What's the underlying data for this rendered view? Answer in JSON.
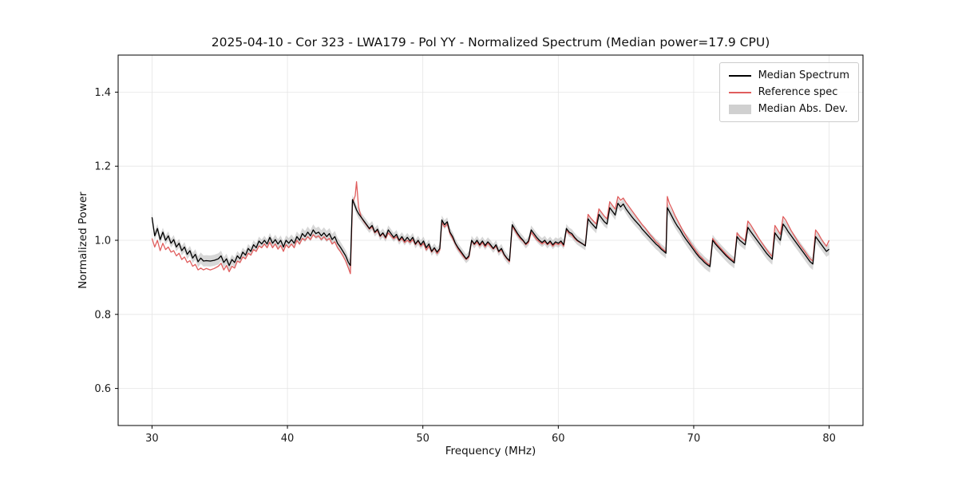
{
  "chart_data": {
    "type": "line",
    "title": "2025-04-10 - Cor 323 - LWA179 - Pol YY - Normalized Spectrum (Median power=17.9 CPU)",
    "xlabel": "Frequency (MHz)",
    "ylabel": "Normalized Power",
    "xlim": [
      27.5,
      82.5
    ],
    "ylim": [
      0.5,
      1.5
    ],
    "xticks": [
      30,
      40,
      50,
      60,
      70,
      80
    ],
    "yticks": [
      0.6,
      0.8,
      1.0,
      1.2,
      1.4
    ],
    "grid": true,
    "colors": {
      "median": "#000000",
      "reference": "#e05d5d",
      "band": "#b0b0b0",
      "grid": "#e5e5e5",
      "spine": "#000000",
      "tick_label": "#1a1a1a"
    },
    "legend": {
      "position": "upper right",
      "entries": [
        {
          "label": "Median Spectrum",
          "swatch": "line-black"
        },
        {
          "label": "Reference spec",
          "swatch": "line-red"
        },
        {
          "label": "Median Abs. Dev.",
          "swatch": "patch-gray"
        }
      ]
    },
    "points_format": [
      "frequency_mhz",
      "median_spectrum",
      "reference_spec",
      "median_abs_dev_halfwidth"
    ],
    "points": [
      [
        30.0,
        1.062,
        1.005,
        0.012
      ],
      [
        30.2,
        1.012,
        0.982,
        0.012
      ],
      [
        30.4,
        1.032,
        1.0,
        0.012
      ],
      [
        30.6,
        1.002,
        0.972,
        0.012
      ],
      [
        30.8,
        1.022,
        0.992,
        0.012
      ],
      [
        31.0,
        1.0,
        0.975,
        0.012
      ],
      [
        31.2,
        1.012,
        0.982,
        0.012
      ],
      [
        31.4,
        0.992,
        0.968,
        0.012
      ],
      [
        31.6,
        1.002,
        0.972,
        0.012
      ],
      [
        31.8,
        0.982,
        0.958,
        0.012
      ],
      [
        32.0,
        0.992,
        0.965,
        0.012
      ],
      [
        32.2,
        0.972,
        0.948,
        0.013
      ],
      [
        32.4,
        0.982,
        0.955,
        0.013
      ],
      [
        32.6,
        0.962,
        0.94,
        0.013
      ],
      [
        32.8,
        0.972,
        0.945,
        0.013
      ],
      [
        33.0,
        0.952,
        0.93,
        0.014
      ],
      [
        33.2,
        0.962,
        0.935,
        0.014
      ],
      [
        33.4,
        0.942,
        0.92,
        0.015
      ],
      [
        33.6,
        0.952,
        0.925,
        0.015
      ],
      [
        33.8,
        0.944,
        0.92,
        0.015
      ],
      [
        34.0,
        0.945,
        0.924,
        0.015
      ],
      [
        34.3,
        0.944,
        0.92,
        0.015
      ],
      [
        34.6,
        0.946,
        0.924,
        0.015
      ],
      [
        34.9,
        0.95,
        0.93,
        0.015
      ],
      [
        35.1,
        0.958,
        0.938,
        0.014
      ],
      [
        35.3,
        0.94,
        0.92,
        0.014
      ],
      [
        35.5,
        0.95,
        0.932,
        0.014
      ],
      [
        35.7,
        0.932,
        0.915,
        0.014
      ],
      [
        35.9,
        0.948,
        0.93,
        0.013
      ],
      [
        36.1,
        0.94,
        0.925,
        0.013
      ],
      [
        36.3,
        0.958,
        0.944,
        0.013
      ],
      [
        36.5,
        0.95,
        0.94,
        0.013
      ],
      [
        36.7,
        0.968,
        0.955,
        0.012
      ],
      [
        36.9,
        0.96,
        0.95,
        0.012
      ],
      [
        37.1,
        0.978,
        0.965,
        0.012
      ],
      [
        37.3,
        0.97,
        0.96,
        0.012
      ],
      [
        37.5,
        0.988,
        0.975,
        0.012
      ],
      [
        37.7,
        0.98,
        0.97,
        0.012
      ],
      [
        37.9,
        0.998,
        0.985,
        0.012
      ],
      [
        38.1,
        0.99,
        0.98,
        0.012
      ],
      [
        38.3,
        1.0,
        0.99,
        0.012
      ],
      [
        38.5,
        0.99,
        0.98,
        0.012
      ],
      [
        38.7,
        1.008,
        0.995,
        0.012
      ],
      [
        38.9,
        0.992,
        0.98,
        0.012
      ],
      [
        39.1,
        1.002,
        0.99,
        0.013
      ],
      [
        39.3,
        0.99,
        0.976,
        0.013
      ],
      [
        39.5,
        1.0,
        0.986,
        0.013
      ],
      [
        39.7,
        0.982,
        0.97,
        0.013
      ],
      [
        39.9,
        1.0,
        0.988,
        0.013
      ],
      [
        40.1,
        0.992,
        0.98,
        0.014
      ],
      [
        40.3,
        1.002,
        0.99,
        0.014
      ],
      [
        40.5,
        0.992,
        0.98,
        0.014
      ],
      [
        40.7,
        1.01,
        1.0,
        0.014
      ],
      [
        40.9,
        1.0,
        0.99,
        0.014
      ],
      [
        41.1,
        1.018,
        1.005,
        0.015
      ],
      [
        41.3,
        1.01,
        1.0,
        0.015
      ],
      [
        41.5,
        1.022,
        1.01,
        0.015
      ],
      [
        41.7,
        1.012,
        1.002,
        0.015
      ],
      [
        41.9,
        1.028,
        1.015,
        0.015
      ],
      [
        42.1,
        1.018,
        1.008,
        0.015
      ],
      [
        42.3,
        1.022,
        1.012,
        0.015
      ],
      [
        42.5,
        1.012,
        1.002,
        0.015
      ],
      [
        42.7,
        1.02,
        1.01,
        0.015
      ],
      [
        42.9,
        1.01,
        1.0,
        0.015
      ],
      [
        43.1,
        1.018,
        1.005,
        0.015
      ],
      [
        43.3,
        1.002,
        0.99,
        0.015
      ],
      [
        43.5,
        1.01,
        0.996,
        0.015
      ],
      [
        43.7,
        0.992,
        0.98,
        0.015
      ],
      [
        43.9,
        0.982,
        0.97,
        0.015
      ],
      [
        44.1,
        0.97,
        0.958,
        0.015
      ],
      [
        44.3,
        0.958,
        0.944,
        0.015
      ],
      [
        44.5,
        0.94,
        0.925,
        0.015
      ],
      [
        44.65,
        0.932,
        0.91,
        0.015
      ],
      [
        44.8,
        1.11,
        1.1,
        0.012
      ],
      [
        45.0,
        1.092,
        1.12,
        0.012
      ],
      [
        45.1,
        1.082,
        1.158,
        0.012
      ],
      [
        45.25,
        1.072,
        1.09,
        0.012
      ],
      [
        45.45,
        1.062,
        1.062,
        0.012
      ],
      [
        45.65,
        1.052,
        1.05,
        0.012
      ],
      [
        45.85,
        1.042,
        1.04,
        0.012
      ],
      [
        46.05,
        1.032,
        1.03,
        0.012
      ],
      [
        46.25,
        1.04,
        1.036,
        0.012
      ],
      [
        46.45,
        1.022,
        1.02,
        0.012
      ],
      [
        46.65,
        1.03,
        1.026,
        0.012
      ],
      [
        46.85,
        1.012,
        1.01,
        0.012
      ],
      [
        47.05,
        1.02,
        1.018,
        0.012
      ],
      [
        47.25,
        1.008,
        1.005,
        0.012
      ],
      [
        47.45,
        1.028,
        1.02,
        0.012
      ],
      [
        47.65,
        1.018,
        1.012,
        0.012
      ],
      [
        47.85,
        1.008,
        1.004,
        0.012
      ],
      [
        48.05,
        1.016,
        1.01,
        0.012
      ],
      [
        48.25,
        1.0,
        0.998,
        0.012
      ],
      [
        48.45,
        1.01,
        1.005,
        0.012
      ],
      [
        48.65,
        0.998,
        0.994,
        0.012
      ],
      [
        48.85,
        1.008,
        1.0,
        0.012
      ],
      [
        49.05,
        0.998,
        0.994,
        0.012
      ],
      [
        49.25,
        1.008,
        1.002,
        0.012
      ],
      [
        49.45,
        0.99,
        0.988,
        0.012
      ],
      [
        49.65,
        1.0,
        0.998,
        0.012
      ],
      [
        49.85,
        0.988,
        0.984,
        0.012
      ],
      [
        50.05,
        0.998,
        0.992,
        0.012
      ],
      [
        50.25,
        0.98,
        0.974,
        0.012
      ],
      [
        50.45,
        0.99,
        0.984,
        0.012
      ],
      [
        50.65,
        0.97,
        0.968,
        0.012
      ],
      [
        50.85,
        0.98,
        0.978,
        0.012
      ],
      [
        51.05,
        0.968,
        0.964,
        0.012
      ],
      [
        51.25,
        0.978,
        0.974,
        0.012
      ],
      [
        51.4,
        1.055,
        1.048,
        0.012
      ],
      [
        51.6,
        1.042,
        1.036,
        0.012
      ],
      [
        51.8,
        1.05,
        1.044,
        0.012
      ],
      [
        52.0,
        1.022,
        1.018,
        0.012
      ],
      [
        52.2,
        1.01,
        1.005,
        0.012
      ],
      [
        52.4,
        0.992,
        0.99,
        0.012
      ],
      [
        52.6,
        0.98,
        0.976,
        0.012
      ],
      [
        52.8,
        0.97,
        0.966,
        0.012
      ],
      [
        53.0,
        0.96,
        0.956,
        0.012
      ],
      [
        53.2,
        0.95,
        0.948,
        0.012
      ],
      [
        53.4,
        0.958,
        0.954,
        0.012
      ],
      [
        53.6,
        1.0,
        0.998,
        0.012
      ],
      [
        53.8,
        0.99,
        0.988,
        0.012
      ],
      [
        54.0,
        1.0,
        0.995,
        0.012
      ],
      [
        54.2,
        0.988,
        0.985,
        0.012
      ],
      [
        54.4,
        0.998,
        0.994,
        0.012
      ],
      [
        54.6,
        0.986,
        0.982,
        0.012
      ],
      [
        54.8,
        0.996,
        0.992,
        0.012
      ],
      [
        55.0,
        0.988,
        0.984,
        0.012
      ],
      [
        55.2,
        0.978,
        0.976,
        0.012
      ],
      [
        55.4,
        0.988,
        0.984,
        0.012
      ],
      [
        55.6,
        0.97,
        0.968,
        0.012
      ],
      [
        55.8,
        0.978,
        0.974,
        0.012
      ],
      [
        56.0,
        0.962,
        0.96,
        0.012
      ],
      [
        56.2,
        0.952,
        0.95,
        0.012
      ],
      [
        56.4,
        0.945,
        0.942,
        0.012
      ],
      [
        56.6,
        1.042,
        1.038,
        0.012
      ],
      [
        56.8,
        1.03,
        1.026,
        0.012
      ],
      [
        57.0,
        1.018,
        1.014,
        0.012
      ],
      [
        57.2,
        1.008,
        1.004,
        0.012
      ],
      [
        57.4,
        1.0,
        0.998,
        0.012
      ],
      [
        57.6,
        0.99,
        0.988,
        0.012
      ],
      [
        57.8,
        0.998,
        0.994,
        0.012
      ],
      [
        58.0,
        1.028,
        1.022,
        0.012
      ],
      [
        58.2,
        1.018,
        1.012,
        0.012
      ],
      [
        58.4,
        1.008,
        1.002,
        0.012
      ],
      [
        58.6,
        1.0,
        0.996,
        0.012
      ],
      [
        58.8,
        0.994,
        0.99,
        0.012
      ],
      [
        59.0,
        1.0,
        0.996,
        0.012
      ],
      [
        59.2,
        0.99,
        0.988,
        0.012
      ],
      [
        59.4,
        0.998,
        0.994,
        0.012
      ],
      [
        59.6,
        0.988,
        0.984,
        0.012
      ],
      [
        59.8,
        0.996,
        0.992,
        0.012
      ],
      [
        60.0,
        0.992,
        0.988,
        0.012
      ],
      [
        60.2,
        0.998,
        0.994,
        0.012
      ],
      [
        60.4,
        0.988,
        0.984,
        0.012
      ],
      [
        60.6,
        1.032,
        1.028,
        0.012
      ],
      [
        60.8,
        1.022,
        1.018,
        0.012
      ],
      [
        61.0,
        1.018,
        1.014,
        0.012
      ],
      [
        61.2,
        1.008,
        1.005,
        0.012
      ],
      [
        61.4,
        1.0,
        0.998,
        0.012
      ],
      [
        61.6,
        0.995,
        0.994,
        0.012
      ],
      [
        61.8,
        0.99,
        0.99,
        0.012
      ],
      [
        62.0,
        0.985,
        0.986,
        0.012
      ],
      [
        62.2,
        1.058,
        1.07,
        0.013
      ],
      [
        62.4,
        1.048,
        1.06,
        0.013
      ],
      [
        62.6,
        1.04,
        1.052,
        0.013
      ],
      [
        62.8,
        1.032,
        1.044,
        0.013
      ],
      [
        63.0,
        1.07,
        1.085,
        0.013
      ],
      [
        63.2,
        1.06,
        1.075,
        0.013
      ],
      [
        63.4,
        1.05,
        1.065,
        0.013
      ],
      [
        63.6,
        1.044,
        1.058,
        0.013
      ],
      [
        63.8,
        1.088,
        1.104,
        0.013
      ],
      [
        64.0,
        1.078,
        1.094,
        0.013
      ],
      [
        64.2,
        1.068,
        1.084,
        0.013
      ],
      [
        64.4,
        1.1,
        1.118,
        0.013
      ],
      [
        64.6,
        1.09,
        1.108,
        0.013
      ],
      [
        64.8,
        1.098,
        1.114,
        0.013
      ],
      [
        65.0,
        1.085,
        1.102,
        0.013
      ],
      [
        65.2,
        1.075,
        1.092,
        0.014
      ],
      [
        65.4,
        1.065,
        1.082,
        0.014
      ],
      [
        65.6,
        1.056,
        1.072,
        0.014
      ],
      [
        65.8,
        1.048,
        1.062,
        0.014
      ],
      [
        66.0,
        1.04,
        1.052,
        0.014
      ],
      [
        66.2,
        1.03,
        1.042,
        0.014
      ],
      [
        66.4,
        1.022,
        1.034,
        0.014
      ],
      [
        66.6,
        1.014,
        1.024,
        0.014
      ],
      [
        66.8,
        1.006,
        1.014,
        0.014
      ],
      [
        67.0,
        0.998,
        1.006,
        0.014
      ],
      [
        67.2,
        0.99,
        0.996,
        0.014
      ],
      [
        67.4,
        0.984,
        0.99,
        0.014
      ],
      [
        67.6,
        0.976,
        0.98,
        0.014
      ],
      [
        67.8,
        0.97,
        0.974,
        0.014
      ],
      [
        67.95,
        0.965,
        0.968,
        0.014
      ],
      [
        68.05,
        1.088,
        1.118,
        0.014
      ],
      [
        68.2,
        1.078,
        1.1,
        0.014
      ],
      [
        68.4,
        1.064,
        1.085,
        0.015
      ],
      [
        68.6,
        1.05,
        1.068,
        0.015
      ],
      [
        68.8,
        1.038,
        1.054,
        0.015
      ],
      [
        69.0,
        1.028,
        1.04,
        0.015
      ],
      [
        69.2,
        1.015,
        1.026,
        0.015
      ],
      [
        69.4,
        1.004,
        1.014,
        0.015
      ],
      [
        69.6,
        0.994,
        1.002,
        0.016
      ],
      [
        69.8,
        0.984,
        0.99,
        0.016
      ],
      [
        70.0,
        0.974,
        0.98,
        0.016
      ],
      [
        70.2,
        0.964,
        0.97,
        0.016
      ],
      [
        70.4,
        0.955,
        0.96,
        0.016
      ],
      [
        70.6,
        0.948,
        0.953,
        0.016
      ],
      [
        70.8,
        0.94,
        0.945,
        0.016
      ],
      [
        71.0,
        0.934,
        0.938,
        0.016
      ],
      [
        71.2,
        0.929,
        0.933,
        0.016
      ],
      [
        71.4,
        1.0,
        1.005,
        0.015
      ],
      [
        71.6,
        0.99,
        0.995,
        0.015
      ],
      [
        71.8,
        0.982,
        0.986,
        0.015
      ],
      [
        72.0,
        0.974,
        0.978,
        0.015
      ],
      [
        72.2,
        0.966,
        0.97,
        0.015
      ],
      [
        72.4,
        0.958,
        0.962,
        0.015
      ],
      [
        72.6,
        0.951,
        0.955,
        0.015
      ],
      [
        72.8,
        0.945,
        0.949,
        0.015
      ],
      [
        73.0,
        0.939,
        0.943,
        0.015
      ],
      [
        73.2,
        1.01,
        1.02,
        0.014
      ],
      [
        73.4,
        1.0,
        1.01,
        0.014
      ],
      [
        73.6,
        0.994,
        1.004,
        0.014
      ],
      [
        73.8,
        0.988,
        0.998,
        0.014
      ],
      [
        74.0,
        1.035,
        1.052,
        0.014
      ],
      [
        74.2,
        1.024,
        1.042,
        0.014
      ],
      [
        74.4,
        1.014,
        1.03,
        0.014
      ],
      [
        74.6,
        1.004,
        1.018,
        0.014
      ],
      [
        74.8,
        0.994,
        1.006,
        0.014
      ],
      [
        75.0,
        0.984,
        0.995,
        0.014
      ],
      [
        75.2,
        0.974,
        0.984,
        0.015
      ],
      [
        75.4,
        0.964,
        0.974,
        0.015
      ],
      [
        75.6,
        0.956,
        0.964,
        0.015
      ],
      [
        75.8,
        0.949,
        0.956,
        0.015
      ],
      [
        76.0,
        1.02,
        1.04,
        0.015
      ],
      [
        76.2,
        1.01,
        1.028,
        0.015
      ],
      [
        76.4,
        1.0,
        1.016,
        0.015
      ],
      [
        76.6,
        1.044,
        1.064,
        0.015
      ],
      [
        76.8,
        1.034,
        1.054,
        0.015
      ],
      [
        77.0,
        1.022,
        1.04,
        0.015
      ],
      [
        77.2,
        1.012,
        1.026,
        0.015
      ],
      [
        77.4,
        1.002,
        1.014,
        0.016
      ],
      [
        77.6,
        0.992,
        1.002,
        0.016
      ],
      [
        77.8,
        0.982,
        0.99,
        0.016
      ],
      [
        78.0,
        0.972,
        0.98,
        0.016
      ],
      [
        78.2,
        0.962,
        0.97,
        0.016
      ],
      [
        78.4,
        0.952,
        0.96,
        0.016
      ],
      [
        78.6,
        0.942,
        0.95,
        0.016
      ],
      [
        78.8,
        0.936,
        0.944,
        0.016
      ],
      [
        79.0,
        1.01,
        1.028,
        0.015
      ],
      [
        79.2,
        1.0,
        1.018,
        0.015
      ],
      [
        79.4,
        0.99,
        1.005,
        0.015
      ],
      [
        79.6,
        0.98,
        0.994,
        0.015
      ],
      [
        79.8,
        0.97,
        0.984,
        0.015
      ],
      [
        80.0,
        0.976,
        1.0,
        0.015
      ]
    ]
  }
}
